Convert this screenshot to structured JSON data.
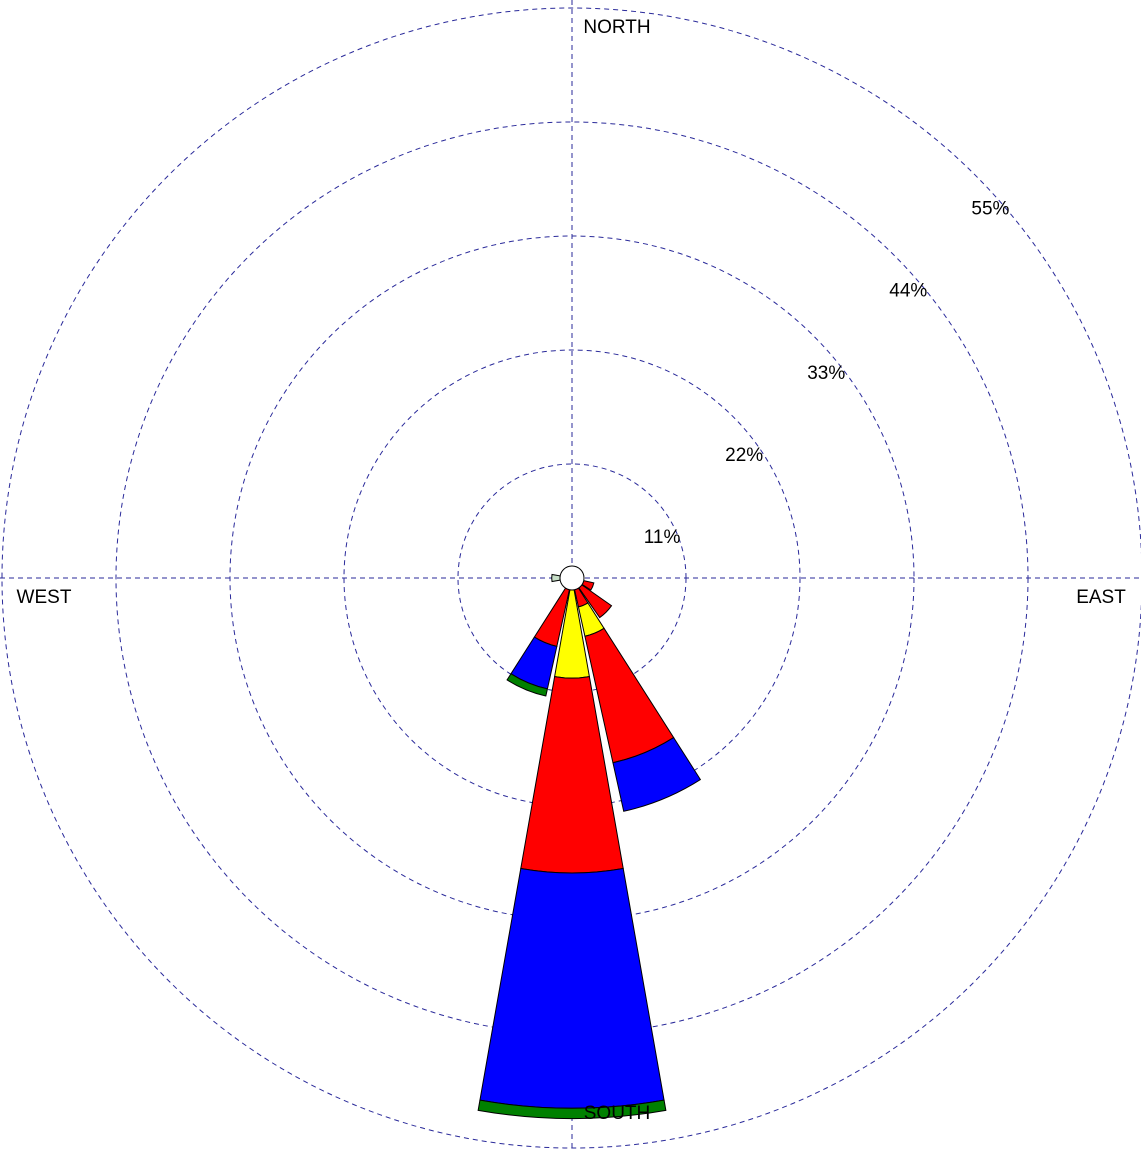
{
  "chart_data": {
    "type": "windrose",
    "x": [
      0,
      22.5,
      45,
      67.5,
      90,
      112.5,
      135,
      157.5,
      180,
      202.5,
      225,
      247.5,
      270,
      292.5,
      315,
      337.5
    ],
    "series": [
      {
        "color": "#c8e0c8",
        "values": [
          0,
          0,
          0,
          0,
          0,
          0,
          0,
          0,
          0,
          0,
          0,
          0,
          0.8,
          0,
          0,
          0
        ]
      },
      {
        "color": "#ff0000",
        "values": [
          0,
          0,
          0,
          0,
          0,
          1,
          3.5,
          1.7,
          0,
          5.6,
          0,
          0,
          0,
          0,
          0,
          0
        ]
      },
      {
        "color": "#ffff00",
        "values": [
          0,
          0,
          0,
          0,
          0,
          0,
          0,
          2.9,
          8.5,
          0,
          0,
          0,
          0,
          0,
          0,
          0
        ]
      },
      {
        "color": "#ff0000",
        "values": [
          0,
          0,
          0,
          0,
          0,
          0,
          0,
          12.5,
          18.8,
          0,
          0,
          0,
          0,
          0,
          0,
          0
        ]
      },
      {
        "color": "#0000ff",
        "values": [
          0,
          0,
          0,
          0,
          0,
          0,
          0,
          4.8,
          22.7,
          4.2,
          0,
          0,
          0,
          0,
          0,
          0
        ]
      },
      {
        "color": "#008000",
        "values": [
          0,
          0,
          0,
          0,
          0,
          0,
          0,
          0,
          1,
          0.7,
          0,
          0,
          0,
          0,
          0,
          0
        ]
      }
    ],
    "rlim": [
      0,
      55
    ],
    "rticks": [
      {
        "value": 11,
        "label": "11%"
      },
      {
        "value": 22,
        "label": "22%"
      },
      {
        "value": 33,
        "label": "33%"
      },
      {
        "value": 44,
        "label": "44%"
      },
      {
        "value": 55,
        "label": "55%"
      }
    ],
    "compass_labels": {
      "north": "NORTH",
      "east": "EAST",
      "south": "SOUTH",
      "west": "WEST"
    },
    "grid": true
  }
}
